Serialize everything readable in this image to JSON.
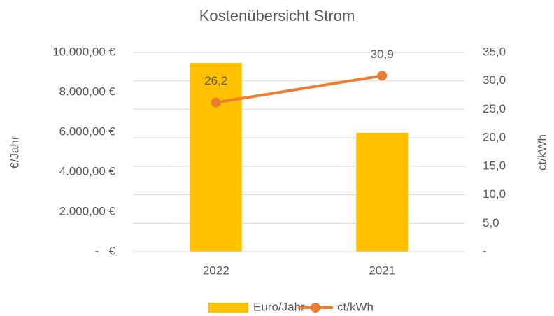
{
  "chart_data": {
    "type": "bar",
    "title": "Kostenübersicht Strom",
    "categories": [
      "2022",
      "2021"
    ],
    "series": [
      {
        "name": "Euro/Jahr",
        "type": "bar",
        "color": "#ffc000",
        "values": [
          9470,
          5970
        ]
      },
      {
        "name": "ct/kWh",
        "type": "line",
        "axis": "y2",
        "color": "#ed7d31",
        "values": [
          26.2,
          30.9
        ],
        "value_labels": [
          "26,2",
          "30,9"
        ]
      }
    ],
    "ylabel": "€/Jahr",
    "y2label": "ct/kWh",
    "ylim": [
      0,
      10000
    ],
    "yticks": [
      {
        "value": 0,
        "label": "-   €"
      },
      {
        "value": 2000,
        "label": "2.000,00 €"
      },
      {
        "value": 4000,
        "label": "4.000,00 €"
      },
      {
        "value": 6000,
        "label": "6.000,00 €"
      },
      {
        "value": 8000,
        "label": "8.000,00 €"
      },
      {
        "value": 10000,
        "label": "10.000,00 €"
      }
    ],
    "y2lim": [
      0,
      35
    ],
    "y2ticks": [
      {
        "value": 0,
        "label": "-"
      },
      {
        "value": 5,
        "label": "5,0"
      },
      {
        "value": 10,
        "label": "10,0"
      },
      {
        "value": 15,
        "label": "15,0"
      },
      {
        "value": 20,
        "label": "20,0"
      },
      {
        "value": 25,
        "label": "25,0"
      },
      {
        "value": 30,
        "label": "30,0"
      },
      {
        "value": 35,
        "label": "35,0"
      }
    ],
    "grid": true,
    "legend": "bottom"
  }
}
